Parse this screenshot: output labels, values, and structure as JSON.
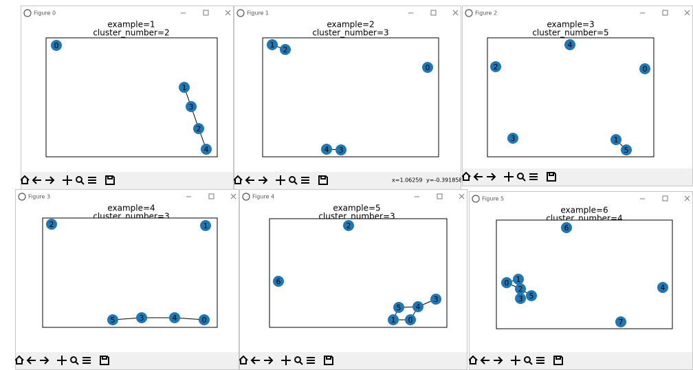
{
  "windows": [
    {
      "title": "Figure 0",
      "title_lines": [
        "example=1",
        "cluster_number=2"
      ],
      "nodes": [
        "0",
        "1",
        "2",
        "3",
        "4"
      ]
    },
    {
      "title": "Figure 1",
      "title_lines": [
        "example=2",
        "cluster_number=3"
      ],
      "nodes": [
        "0",
        "1",
        "2",
        "3",
        "4"
      ],
      "status": [
        "x=1.06259",
        "y=-0.391858"
      ]
    },
    {
      "title": "Figure 2",
      "title_lines": [
        "example=3",
        "cluster_number=5"
      ],
      "nodes": [
        "0",
        "1",
        "2",
        "3",
        "4",
        "5"
      ]
    },
    {
      "title": "Figure 3",
      "title_lines": [
        "example=4",
        "cluster_number=3"
      ],
      "nodes": [
        "0",
        "1",
        "2",
        "3",
        "4",
        "5"
      ]
    },
    {
      "title": "Figure 4",
      "title_lines": [
        "example=5",
        "cluster_number=3"
      ],
      "nodes": [
        "0",
        "1",
        "2",
        "3",
        "4",
        "5",
        "6"
      ]
    },
    {
      "title": "Figure 5",
      "title_lines": [
        "example=6",
        "cluster_number=4"
      ],
      "nodes": [
        "0",
        "1",
        "2",
        "3",
        "4",
        "5",
        "6",
        "7"
      ]
    }
  ]
}
